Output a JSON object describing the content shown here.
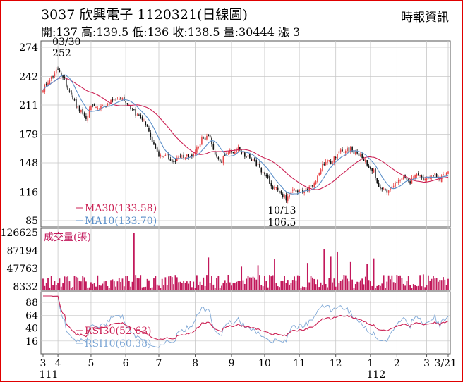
{
  "header": {
    "title": "3037  欣興電子 1120321(日線圖)",
    "source": "時報資訊",
    "quote": "開:137 高:139.5 低:136 收:138.5 量:30444 漲 3"
  },
  "colors": {
    "up": "#e8484a",
    "down": "#111111",
    "ma30": "#cc2255",
    "ma10": "#5b8fc9",
    "volume": "#c2185b",
    "rsi30": "#cc2255",
    "rsi10": "#7fa8d6",
    "grid": "#c8c8c8",
    "frame": "#e00000"
  },
  "chart_data": [
    {
      "type": "candlestick",
      "panel": "price",
      "yticks": [
        274,
        242,
        211,
        179,
        148,
        116,
        85
      ],
      "ylim": [
        85,
        274
      ],
      "n_days": 246,
      "annotations": [
        {
          "text": "03/30",
          "day": 9
        },
        {
          "text": "252",
          "day": 9
        },
        {
          "text": "10/13",
          "day": 147
        },
        {
          "text": "106.5",
          "day": 147
        }
      ],
      "legend": [
        {
          "label": "MA30(133.58)",
          "color": "#cc2255"
        },
        {
          "label": "MA10(133.70)",
          "color": "#5b8fc9"
        }
      ],
      "close_anchors": [
        [
          0,
          228
        ],
        [
          9,
          250
        ],
        [
          13,
          238
        ],
        [
          20,
          210
        ],
        [
          26,
          198
        ],
        [
          30,
          212
        ],
        [
          36,
          208
        ],
        [
          42,
          215
        ],
        [
          48,
          220
        ],
        [
          54,
          205
        ],
        [
          60,
          195
        ],
        [
          64,
          185
        ],
        [
          66,
          170
        ],
        [
          70,
          155
        ],
        [
          74,
          158
        ],
        [
          76,
          153
        ],
        [
          80,
          150
        ],
        [
          84,
          155
        ],
        [
          90,
          155
        ],
        [
          96,
          173
        ],
        [
          100,
          178
        ],
        [
          104,
          158
        ],
        [
          108,
          150
        ],
        [
          112,
          160
        ],
        [
          118,
          162
        ],
        [
          124,
          155
        ],
        [
          130,
          145
        ],
        [
          136,
          130
        ],
        [
          140,
          120
        ],
        [
          144,
          115
        ],
        [
          147,
          110
        ],
        [
          152,
          118
        ],
        [
          156,
          116
        ],
        [
          160,
          120
        ],
        [
          164,
          126
        ],
        [
          170,
          148
        ],
        [
          174,
          150
        ],
        [
          180,
          160
        ],
        [
          186,
          162
        ],
        [
          190,
          157
        ],
        [
          194,
          152
        ],
        [
          200,
          138
        ],
        [
          204,
          120
        ],
        [
          208,
          118
        ],
        [
          212,
          122
        ],
        [
          218,
          135
        ],
        [
          222,
          128
        ],
        [
          226,
          137
        ],
        [
          230,
          132
        ],
        [
          236,
          135
        ],
        [
          240,
          130
        ],
        [
          245,
          138.5
        ]
      ],
      "ma30_last": 133.58,
      "ma10_last": 133.7
    },
    {
      "type": "bar",
      "panel": "volume",
      "title": "成交量(張)",
      "yticks": [
        126625,
        87194,
        47763,
        8332
      ],
      "ylim": [
        0,
        126625
      ],
      "spikes": [
        [
          55,
          126625
        ],
        [
          100,
          72000
        ],
        [
          140,
          68000
        ],
        [
          170,
          90000
        ],
        [
          174,
          75000
        ],
        [
          178,
          85000
        ],
        [
          130,
          55000
        ],
        [
          160,
          60000
        ],
        [
          186,
          62000
        ],
        [
          196,
          58000
        ],
        [
          200,
          70000
        ],
        [
          120,
          52000
        ],
        [
          230,
          35000
        ]
      ],
      "base_level": 22000
    },
    {
      "type": "line",
      "panel": "rsi",
      "yticks": [
        88,
        64,
        40,
        16
      ],
      "ylim": [
        0,
        100
      ],
      "legend": [
        {
          "label": "RSI30(52.63)",
          "color": "#cc2255"
        },
        {
          "label": "RSI10(60.38)",
          "color": "#7fa8d6"
        }
      ],
      "rsi30_last": 52.63,
      "rsi10_last": 60.38
    },
    {
      "type": "axis",
      "panel": "months",
      "ticks": [
        {
          "label": "3",
          "day": 0
        },
        {
          "label": "4",
          "day": 9
        },
        {
          "label": "5",
          "day": 29
        },
        {
          "label": "6",
          "day": 50
        },
        {
          "label": "7",
          "day": 70
        },
        {
          "label": "8",
          "day": 92
        },
        {
          "label": "9",
          "day": 114
        },
        {
          "label": "10",
          "day": 134
        },
        {
          "label": "11",
          "day": 155
        },
        {
          "label": "12",
          "day": 177
        },
        {
          "label": "1",
          "day": 198
        },
        {
          "label": "2",
          "day": 214
        },
        {
          "label": "3",
          "day": 232
        },
        {
          "label": "3/21",
          "day": 245
        }
      ],
      "years": [
        {
          "label": "111",
          "day": 0
        },
        {
          "label": "112",
          "day": 198
        }
      ]
    }
  ]
}
